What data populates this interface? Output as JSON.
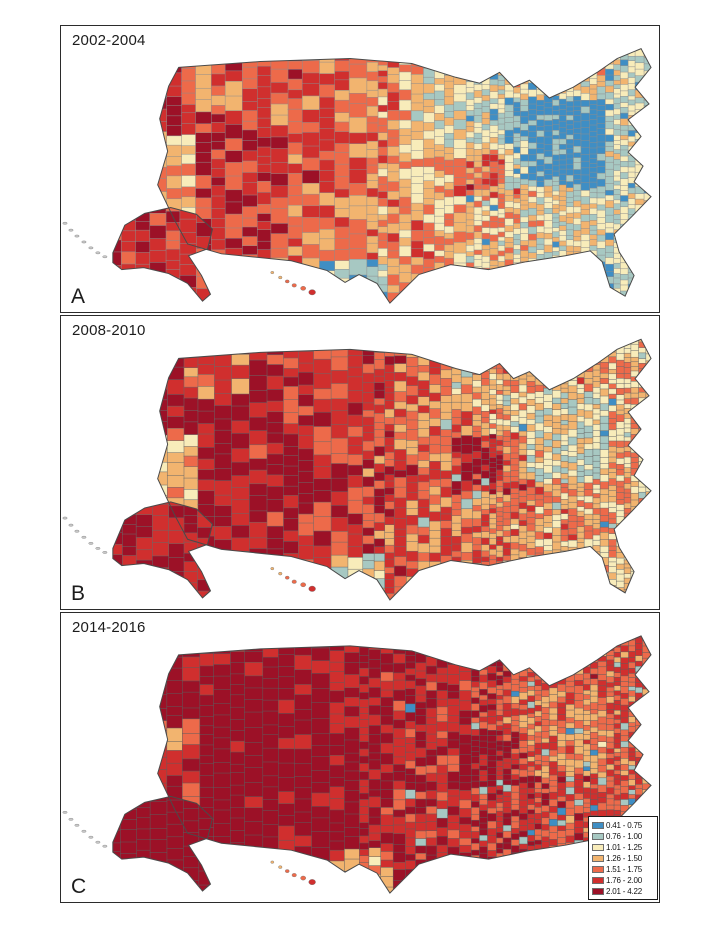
{
  "figure": {
    "panels": [
      {
        "id": "A",
        "title": "2002-2004",
        "label": "A"
      },
      {
        "id": "B",
        "title": "2008-2010",
        "label": "B"
      },
      {
        "id": "C",
        "title": "2014-2016",
        "label": "C"
      }
    ],
    "legend": {
      "classes": [
        {
          "label": "0.41 - 0.75",
          "color": "#3f8ec4"
        },
        {
          "label": "0.76 - 1.00",
          "color": "#a7c8c2"
        },
        {
          "label": "1.01 - 1.25",
          "color": "#f8ecba"
        },
        {
          "label": "1.26 - 1.50",
          "color": "#f2b46f"
        },
        {
          "label": "1.51 - 1.75",
          "color": "#ed6a4a"
        },
        {
          "label": "1.76 - 2.00",
          "color": "#d02f2e"
        },
        {
          "label": "2.01 - 4.22",
          "color": "#9c1127"
        }
      ]
    },
    "colors": {
      "panel_border": "#2b2b2b",
      "map_outline": "#4a4a4a"
    }
  }
}
